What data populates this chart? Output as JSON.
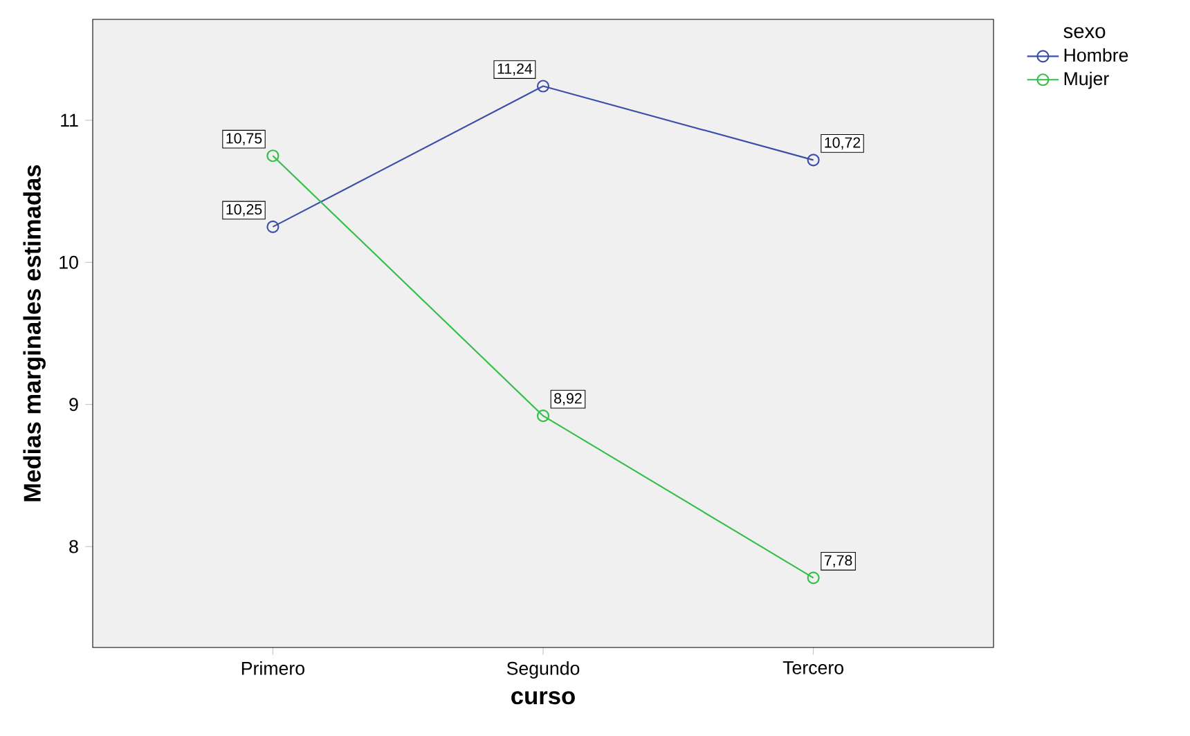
{
  "chart_data": {
    "type": "line",
    "xlabel": "curso",
    "ylabel": "Medias marginales estimadas",
    "legend_title": "sexo",
    "categories": [
      "Primero",
      "Segundo",
      "Tercero"
    ],
    "series": [
      {
        "name": "Hombre",
        "color": "#3c4fa8",
        "values": [
          10.25,
          11.24,
          10.72
        ],
        "value_labels": [
          "10,25",
          "11,24",
          "10,72"
        ]
      },
      {
        "name": "Mujer",
        "color": "#33bf47",
        "values": [
          10.75,
          8.92,
          7.78
        ],
        "value_labels": [
          "10,75",
          "8,92",
          "7,78"
        ]
      }
    ],
    "ylim": [
      7.29,
      11.71
    ],
    "yticks": [
      8,
      9,
      10,
      11
    ],
    "grid": false,
    "legend": "top right",
    "marker": "circle",
    "line_style": "solid"
  }
}
